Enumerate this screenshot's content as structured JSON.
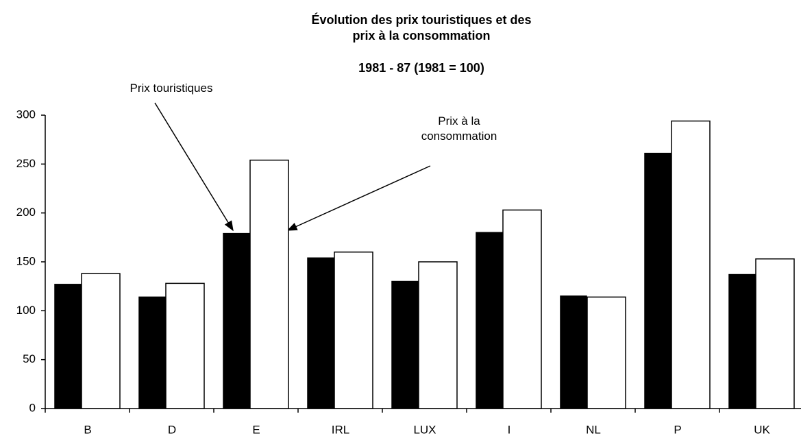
{
  "chart_data": {
    "type": "bar",
    "title": "Évolution des prix touristiques et des prix à la consommation",
    "subtitle": "1981 - 87 (1981 = 100)",
    "categories": [
      "B",
      "D",
      "E",
      "IRL",
      "LUX",
      "I",
      "NL",
      "P",
      "UK"
    ],
    "series": [
      {
        "name": "Prix touristiques",
        "color": "#000000",
        "values": [
          127,
          114,
          179,
          154,
          130,
          180,
          115,
          261,
          137
        ]
      },
      {
        "name": "Prix à la consommation",
        "color": "#ffffff",
        "values": [
          138,
          128,
          254,
          160,
          150,
          203,
          114,
          294,
          153
        ]
      }
    ],
    "ylim": [
      0,
      300
    ],
    "yticks": [
      0,
      50,
      100,
      150,
      200,
      250,
      300
    ],
    "grid": false
  }
}
